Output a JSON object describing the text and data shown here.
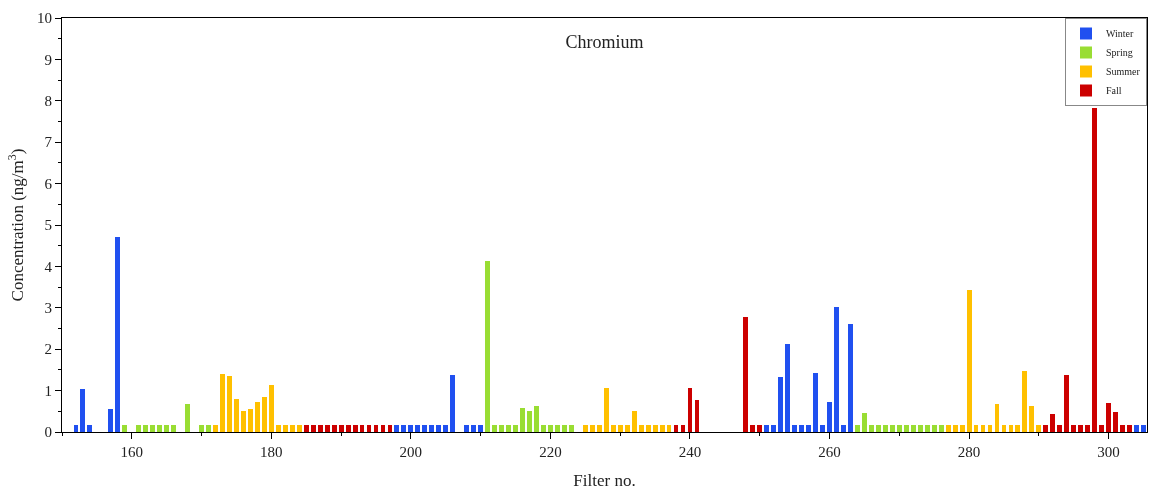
{
  "chart_data": {
    "type": "bar",
    "title": "Chromium",
    "xlabel": "Filter no.",
    "ylabel": "Concentration (ng/m$^{3}$)",
    "xlim": [
      150,
      305.5
    ],
    "xticks": [
      160,
      180,
      200,
      220,
      240,
      260,
      280,
      300
    ],
    "ylim": [
      0,
      10
    ],
    "yticks": [
      0,
      1,
      2,
      3,
      4,
      5,
      6,
      7,
      8,
      9,
      10
    ],
    "legend": "top right",
    "series": [
      {
        "name": "Winter",
        "color": "#2050f0",
        "x": [
          152,
          153,
          154,
          157,
          158,
          198,
          199,
          200,
          201,
          202,
          203,
          204,
          205,
          206,
          208,
          209,
          210,
          251,
          252,
          253,
          254,
          255,
          256,
          257,
          258,
          259,
          260,
          261,
          262,
          263,
          304,
          305
        ],
        "values": [
          0.17,
          1.04,
          0.17,
          0.55,
          4.7,
          0.17,
          0.17,
          0.17,
          0.17,
          0.17,
          0.17,
          0.17,
          0.17,
          1.38,
          0.17,
          0.17,
          0.17,
          0.17,
          0.17,
          1.32,
          2.13,
          0.17,
          0.17,
          0.17,
          1.42,
          0.17,
          0.72,
          3.01,
          0.17,
          2.61,
          0.17,
          0.17
        ]
      },
      {
        "name": "Spring",
        "color": "#99dd33",
        "x": [
          159,
          161,
          162,
          163,
          164,
          165,
          166,
          168,
          170,
          171,
          211,
          212,
          213,
          214,
          215,
          216,
          217,
          218,
          219,
          220,
          221,
          222,
          223,
          264,
          265,
          266,
          267,
          268,
          269,
          270,
          271,
          272,
          273,
          274,
          275,
          276
        ],
        "values": [
          0.17,
          0.17,
          0.17,
          0.17,
          0.17,
          0.17,
          0.17,
          0.67,
          0.17,
          0.17,
          4.13,
          0.17,
          0.17,
          0.17,
          0.17,
          0.59,
          0.51,
          0.64,
          0.17,
          0.17,
          0.17,
          0.17,
          0.17,
          0.17,
          0.45,
          0.17,
          0.17,
          0.17,
          0.17,
          0.17,
          0.17,
          0.17,
          0.17,
          0.17,
          0.17,
          0.17
        ]
      },
      {
        "name": "Summer",
        "color": "#ffc000",
        "x": [
          172,
          173,
          174,
          175,
          176,
          177,
          178,
          179,
          180,
          181,
          182,
          183,
          184,
          225,
          226,
          227,
          228,
          229,
          230,
          231,
          232,
          233,
          234,
          235,
          236,
          237,
          277,
          278,
          279,
          280,
          281,
          282,
          283,
          284,
          285,
          286,
          287,
          288,
          289,
          290
        ],
        "values": [
          0.17,
          1.41,
          1.35,
          0.8,
          0.51,
          0.56,
          0.72,
          0.85,
          1.13,
          0.17,
          0.17,
          0.17,
          0.17,
          0.17,
          0.17,
          0.17,
          1.06,
          0.17,
          0.17,
          0.17,
          0.51,
          0.17,
          0.17,
          0.17,
          0.17,
          0.17,
          0.17,
          0.17,
          0.17,
          3.43,
          0.17,
          0.17,
          0.17,
          0.68,
          0.17,
          0.17,
          0.17,
          1.47,
          0.64,
          0.17
        ]
      },
      {
        "name": "Fall",
        "color": "#cc0000",
        "x": [
          185,
          186,
          187,
          188,
          189,
          190,
          191,
          192,
          193,
          194,
          195,
          196,
          197,
          238,
          239,
          240,
          241,
          248,
          249,
          250,
          291,
          292,
          293,
          294,
          295,
          296,
          297,
          298,
          299,
          300,
          301,
          302,
          303
        ],
        "values": [
          0.17,
          0.17,
          0.17,
          0.17,
          0.17,
          0.17,
          0.17,
          0.17,
          0.17,
          0.17,
          0.17,
          0.17,
          0.17,
          0.17,
          0.17,
          1.06,
          0.77,
          2.77,
          0.17,
          0.17,
          0.17,
          0.43,
          0.17,
          1.38,
          0.17,
          0.17,
          0.17,
          7.82,
          0.17,
          0.7,
          0.49,
          0.17,
          0.17
        ]
      }
    ]
  }
}
